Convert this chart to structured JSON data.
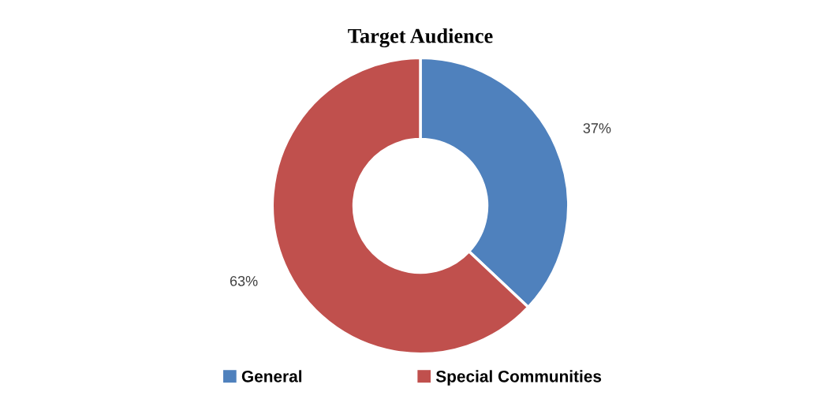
{
  "chart_data": {
    "type": "donut",
    "title": "Target Audience",
    "categories": [
      "General",
      "Special Communities"
    ],
    "values": [
      37,
      63
    ],
    "colors": [
      "#4f81bd",
      "#c0504d"
    ],
    "value_labels": [
      "37%",
      "63%"
    ],
    "legend": "bottom"
  }
}
